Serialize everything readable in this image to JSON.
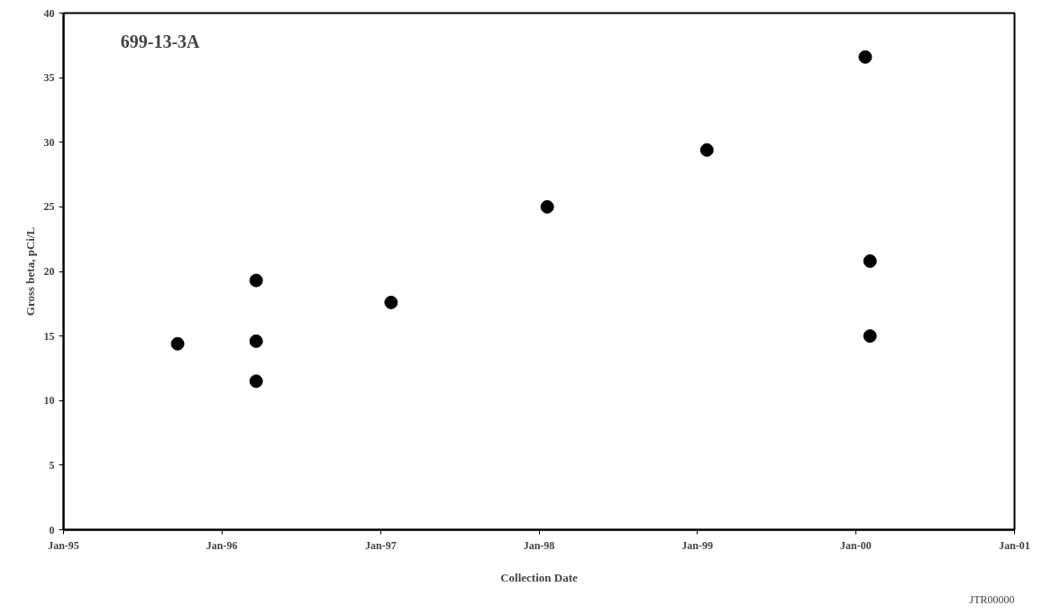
{
  "chart_data": {
    "type": "scatter",
    "xlabel": "Collection Date",
    "ylabel": "Gross beta, pCi/L",
    "annotations": [
      "699-13-3A",
      "JTR00000"
    ],
    "x": [
      "1995-09-21",
      "1996-03-20",
      "1996-03-20",
      "1996-03-20",
      "1997-01-25",
      "1998-01-20",
      "1999-01-23",
      "2000-01-23",
      "2000-02-03",
      "2000-02-03"
    ],
    "series": [
      {
        "color": "#000000",
        "values": [
          14.4,
          19.3,
          14.6,
          11.5,
          17.6,
          25.0,
          29.4,
          36.6,
          20.8,
          15.0
        ]
      }
    ],
    "marker": "circle",
    "xlim": [
      "1995-01-01",
      "2001-01-01"
    ],
    "xticks": [
      {
        "value": "1995-01-01",
        "label": "Jan-95"
      },
      {
        "value": "1996-01-01",
        "label": "Jan-96"
      },
      {
        "value": "1997-01-01",
        "label": "Jan-97"
      },
      {
        "value": "1998-01-01",
        "label": "Jan-98"
      },
      {
        "value": "1999-01-01",
        "label": "Jan-99"
      },
      {
        "value": "2000-01-01",
        "label": "Jan-00"
      },
      {
        "value": "2001-01-01",
        "label": "Jan-01"
      }
    ],
    "ylim": [
      0,
      40
    ],
    "yticks": [
      0,
      5,
      10,
      15,
      20,
      25,
      30,
      35,
      40
    ],
    "grid": false
  }
}
